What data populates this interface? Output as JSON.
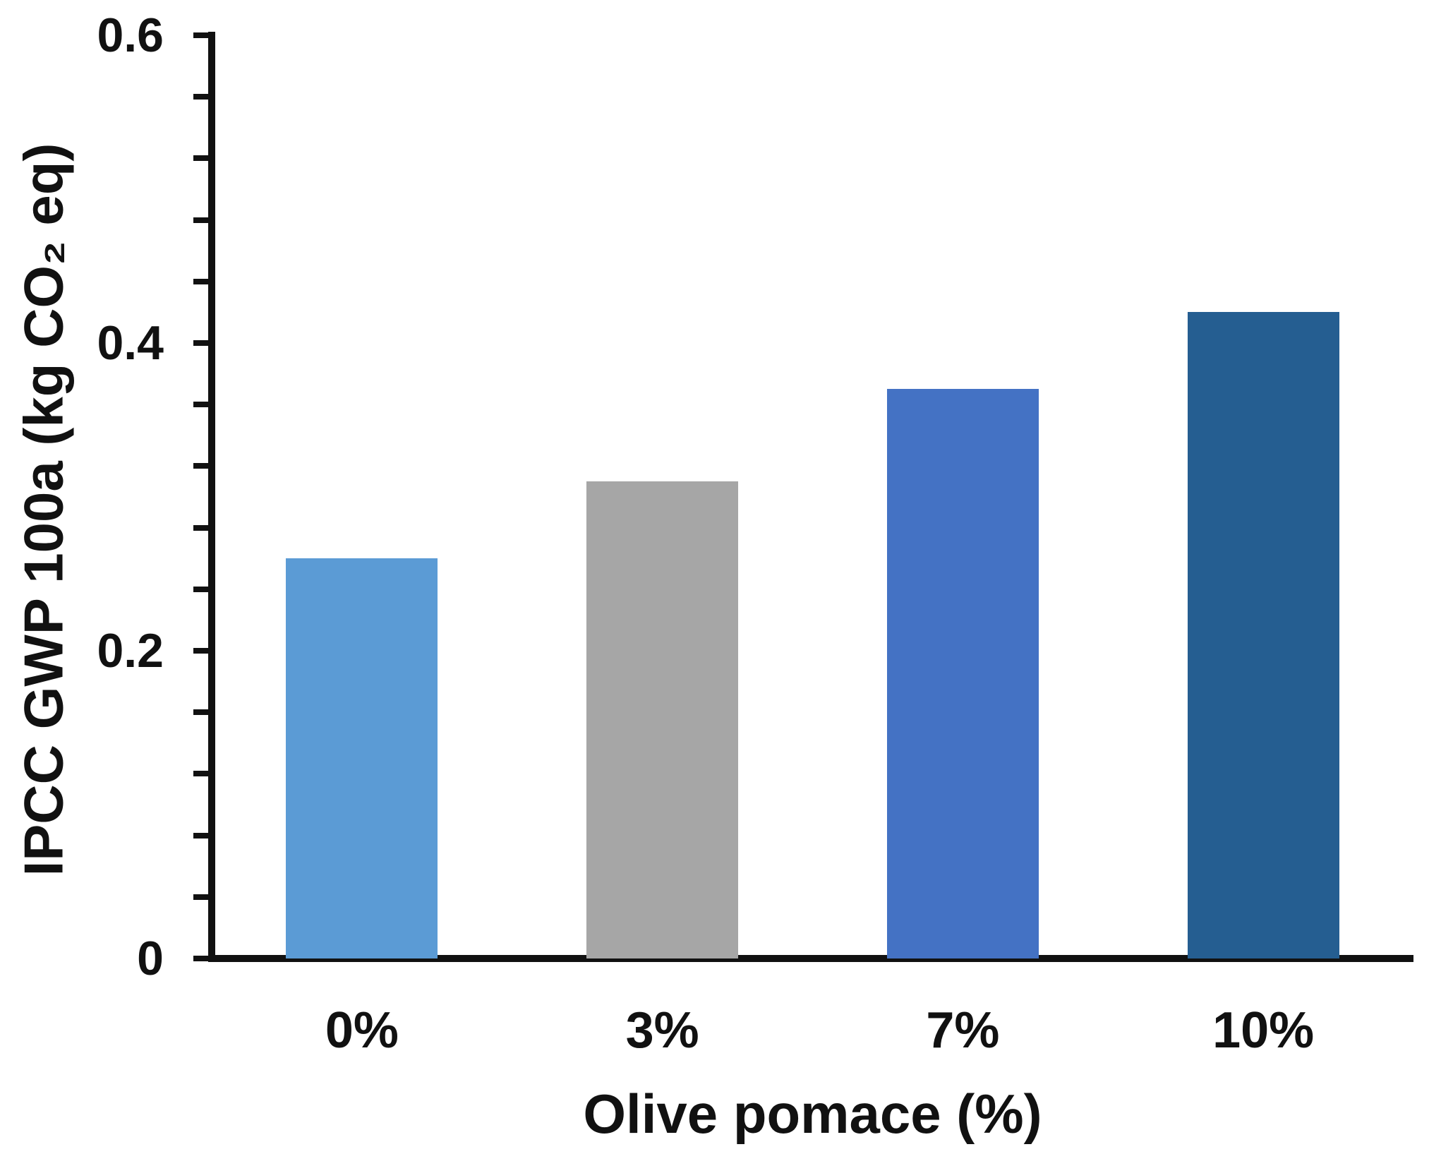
{
  "chart_data": {
    "type": "bar",
    "title": "",
    "categories": [
      "0%",
      "3%",
      "7%",
      "10%"
    ],
    "values": [
      0.26,
      0.31,
      0.37,
      0.42
    ],
    "bar_colors": [
      "#5B9BD5",
      "#A6A6A6",
      "#4472C4",
      "#255E91"
    ],
    "xlabel": "Olive pomace (%)",
    "ylabel": "IPCC GWP 100a (kg CO₂ eq)",
    "ylim": [
      0,
      0.6
    ],
    "y_major_tick": 0.2,
    "y_minor_tick": 0.04,
    "y_tick_labels": [
      "0",
      "0.2",
      "0.4",
      "0.6"
    ],
    "grid": false,
    "legend_position": "none",
    "axis_color": "#111111",
    "text_color": "#111111",
    "background": "#ffffff"
  }
}
